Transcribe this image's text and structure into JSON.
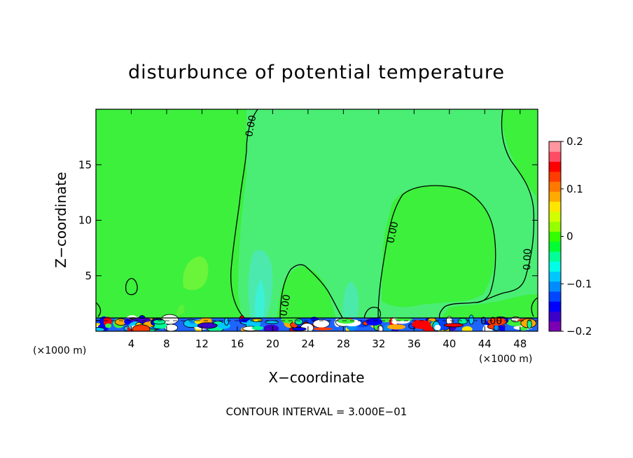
{
  "chart_data": {
    "type": "heatmap",
    "title": "disturbunce of potential temperature",
    "xlabel": "X−coordinate",
    "ylabel": "Z−coordinate",
    "x_unit_left": "(×1000 m)",
    "x_unit_right": "(×1000 m)",
    "xlim": [
      0,
      50
    ],
    "ylim": [
      0,
      20
    ],
    "x_ticks": [
      4,
      8,
      12,
      16,
      20,
      24,
      28,
      32,
      36,
      40,
      44,
      48
    ],
    "y_ticks": [
      5,
      10,
      15
    ],
    "contour_interval_text": "CONTOUR INTERVAL = 3.000E−01",
    "contour_label": "0.00",
    "colorbar": {
      "range": [
        -0.2,
        0.2
      ],
      "tick_labels": [
        "0.2",
        "0.1",
        "0",
        "−0.1",
        "−0.2"
      ],
      "tick_values": [
        0.2,
        0.1,
        0,
        -0.1,
        -0.2
      ],
      "colors": [
        "#7b00b4",
        "#3c00c8",
        "#0000ff",
        "#0046ff",
        "#008cff",
        "#00c8ff",
        "#00ffe6",
        "#00ff96",
        "#00ff32",
        "#32ff00",
        "#96ff00",
        "#d2ff00",
        "#ffe600",
        "#ffaa00",
        "#ff7800",
        "#ff3c00",
        "#ff0000",
        "#ff4b64",
        "#ff96a0"
      ]
    },
    "background_value": 0,
    "background_color": "#3cf03c",
    "grid": false
  }
}
